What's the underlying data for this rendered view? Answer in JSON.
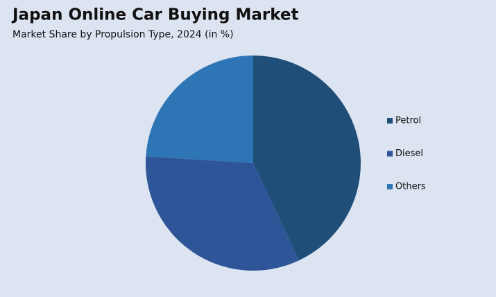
{
  "chart_data": {
    "type": "pie",
    "title": "Japan Online Car Buying Market",
    "subtitle": "Market Share by Propulsion Type, 2024 (in %)",
    "categories": [
      "Petrol",
      "Diesel",
      "Others"
    ],
    "values": [
      43,
      33,
      24
    ],
    "colors": [
      "#1f4e79",
      "#2e5597",
      "#2e75b6"
    ]
  }
}
